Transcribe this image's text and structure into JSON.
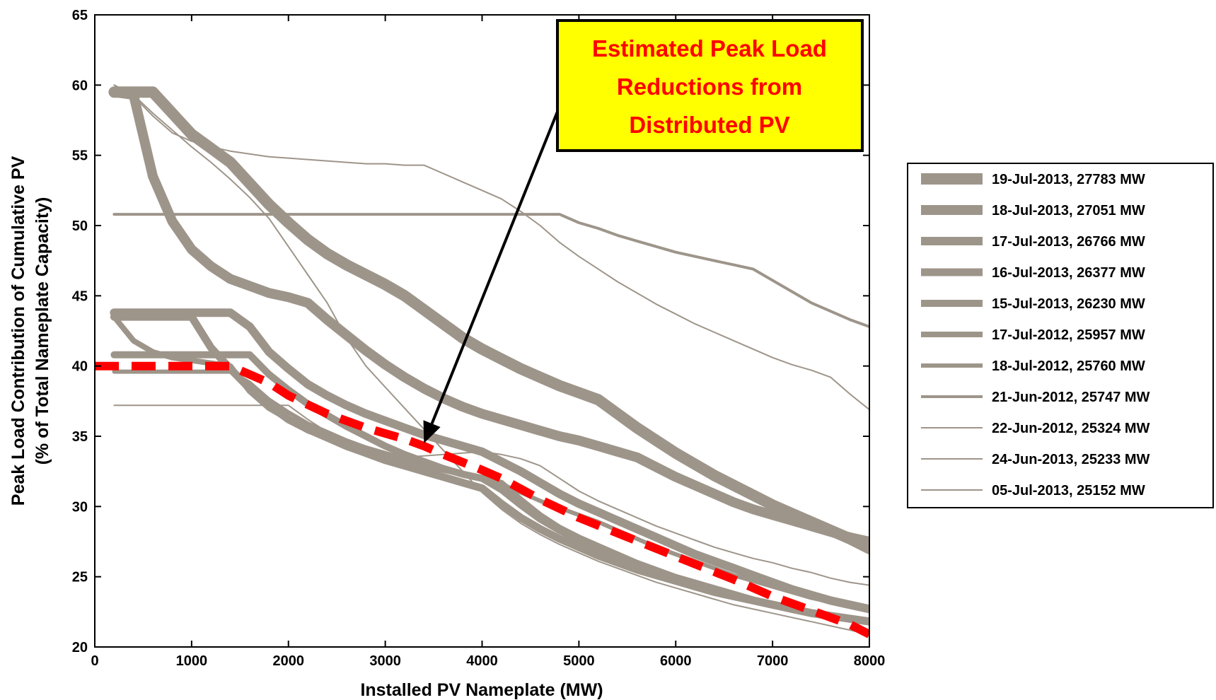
{
  "chart_data": {
    "type": "line",
    "xlabel": "Installed PV Nameplate (MW)",
    "ylabel": [
      "Peak Load Contribution of Cumulative PV",
      "(% of Total Nameplate Capacity)"
    ],
    "xlim": [
      0,
      8000
    ],
    "ylim": [
      20,
      65
    ],
    "xticks": [
      0,
      1000,
      2000,
      3000,
      4000,
      5000,
      6000,
      7000,
      8000
    ],
    "yticks": [
      20,
      25,
      30,
      35,
      40,
      45,
      50,
      55,
      60,
      65
    ],
    "grid": false,
    "legend_position": "right",
    "series_color": "#9e958a",
    "highlight_color": "#ff0000",
    "annotation": {
      "lines": [
        "Estimated Peak Load",
        "Reductions from",
        "Distributed PV"
      ],
      "text_color": "#ff0000",
      "background": "#ffff00",
      "arrow_target": [
        3400,
        34.5
      ]
    },
    "series": [
      {
        "name": "19-Jul-2013, 27783 MW",
        "stroke": 16,
        "x": [
          200,
          600,
          800,
          1000,
          1200,
          1400,
          1600,
          1800,
          2000,
          2200,
          2400,
          2600,
          2800,
          3000,
          3200,
          3400,
          3600,
          3800,
          4000,
          4200,
          4400,
          4600,
          4800,
          5000,
          5200,
          5400,
          5600,
          5800,
          6000,
          6200,
          6400,
          6600,
          6800,
          7000,
          7200,
          7400,
          7600,
          7800,
          8000
        ],
        "y": [
          59.5,
          59.5,
          58,
          56.5,
          55.5,
          54.5,
          53,
          51.5,
          50.2,
          49,
          48,
          47.2,
          46.5,
          45.8,
          45,
          44,
          43,
          42,
          41.2,
          40.5,
          39.8,
          39.2,
          38.6,
          38.1,
          37.6,
          36.6,
          35.6,
          34.7,
          33.8,
          33,
          32.2,
          31.5,
          30.8,
          30.1,
          29.5,
          28.9,
          28.3,
          27.7,
          27.0
        ]
      },
      {
        "name": "18-Jul-2013, 27051 MW",
        "stroke": 14,
        "x": [
          200,
          400,
          600,
          800,
          1000,
          1200,
          1400,
          1600,
          1800,
          2000,
          2200,
          2400,
          2600,
          2800,
          3000,
          3200,
          3400,
          3600,
          3800,
          4000,
          4200,
          4400,
          4600,
          4800,
          5000,
          5200,
          5400,
          5600,
          5800,
          6000,
          6200,
          6400,
          6600,
          6800,
          7000,
          7200,
          7400,
          7600,
          7800,
          8000
        ],
        "y": [
          59.5,
          59.3,
          53.5,
          50.3,
          48.3,
          47.1,
          46.2,
          45.7,
          45.2,
          44.9,
          44.5,
          43.3,
          42.2,
          41.1,
          40.1,
          39.2,
          38.4,
          37.7,
          37.1,
          36.6,
          36.2,
          35.8,
          35.4,
          35.0,
          34.7,
          34.3,
          33.9,
          33.5,
          32.8,
          32.1,
          31.5,
          30.9,
          30.3,
          29.8,
          29.4,
          29.0,
          28.6,
          28.2,
          27.8,
          27.5
        ]
      },
      {
        "name": "17-Jul-2013, 26766 MW",
        "stroke": 12,
        "x": [
          200,
          400,
          600,
          800,
          1000,
          1200,
          1400,
          1600,
          1800,
          2000,
          2200,
          2400,
          2600,
          2800,
          3000,
          3200,
          3400,
          3600,
          3800,
          4000,
          4200,
          4400,
          4600,
          4800,
          5000,
          5200,
          5400,
          5600,
          5800,
          6000,
          6200,
          6400,
          6600,
          6800,
          7000,
          7200,
          7400,
          7600,
          7800,
          8000
        ],
        "y": [
          43.8,
          43.8,
          43.8,
          43.8,
          43.8,
          43.8,
          43.8,
          42.8,
          41.0,
          39.8,
          38.7,
          37.9,
          37.2,
          36.6,
          36.1,
          35.6,
          35.1,
          34.7,
          34.3,
          33.9,
          33.2,
          32.5,
          31.7,
          30.9,
          30.2,
          29.6,
          29.0,
          28.4,
          27.8,
          27.2,
          26.6,
          26.1,
          25.6,
          25.1,
          24.6,
          24.1,
          23.7,
          23.3,
          23.0,
          22.7
        ]
      },
      {
        "name": "16-Jul-2013, 26377 MW",
        "stroke": 11,
        "x": [
          200,
          400,
          600,
          800,
          1000,
          1200,
          1400,
          1600,
          1800,
          2000,
          2200,
          2400,
          2600,
          2800,
          3000,
          3200,
          3400,
          3600,
          3800,
          4000,
          4200,
          4400,
          4600,
          4800,
          5000,
          5200,
          5400,
          5600,
          5800,
          6000,
          6200,
          6400,
          6600,
          6800,
          7000,
          7200,
          7400,
          7600,
          7800,
          8000
        ],
        "y": [
          43.5,
          43.5,
          43.5,
          43.5,
          43.5,
          41.3,
          39.8,
          38.4,
          37.2,
          36.2,
          35.5,
          34.9,
          34.3,
          33.8,
          33.3,
          32.9,
          32.5,
          32.1,
          31.7,
          31.3,
          30.2,
          29.2,
          28.4,
          27.7,
          27.1,
          26.5,
          26.0,
          25.5,
          25.1,
          24.7,
          24.3,
          23.9,
          23.6,
          23.3,
          23.0,
          22.7,
          22.4,
          22.2,
          22.0,
          21.8
        ]
      },
      {
        "name": "15-Jul-2013, 26230 MW",
        "stroke": 10,
        "x": [
          200,
          400,
          600,
          800,
          1000,
          1200,
          1400,
          1600,
          1800,
          2000,
          2200,
          2400,
          2600,
          2800,
          3000,
          3200,
          3400,
          3600,
          3800,
          4000,
          4200,
          4400,
          4600,
          4800,
          5000,
          5200,
          5400,
          5600,
          5800,
          6000,
          6200,
          6400,
          6600,
          6800,
          7000,
          7200,
          7400,
          7600,
          7800,
          8000
        ],
        "y": [
          40.8,
          40.8,
          40.8,
          40.8,
          40.8,
          40.8,
          40.8,
          40.8,
          39.4,
          38.3,
          37.3,
          36.5,
          35.7,
          35.0,
          34.3,
          33.7,
          33.2,
          32.7,
          32.3,
          32.0,
          31.2,
          30.1,
          29.1,
          28.3,
          27.6,
          27.0,
          26.4,
          25.9,
          25.4,
          24.9,
          24.5,
          24.1,
          23.7,
          23.3,
          23.0,
          22.7,
          22.4,
          22.2,
          22.0,
          21.8
        ]
      },
      {
        "name": "17-Jul-2012, 25957 MW",
        "stroke": 8,
        "x": [
          200,
          400,
          600,
          800,
          1000,
          1200,
          1400,
          1600,
          1800,
          2000,
          2200,
          2400,
          2600,
          2800,
          3000,
          3200,
          3400,
          3600,
          3800,
          4000,
          4200,
          4400,
          4600,
          4800,
          5000,
          5200,
          5400,
          5600,
          5800,
          6000,
          6200,
          6400,
          6600,
          6800,
          7000,
          7200,
          7400,
          7600,
          7800,
          8000
        ],
        "y": [
          43.5,
          41.8,
          41.0,
          40.6,
          40.4,
          40.2,
          40.0,
          38.2,
          37.0,
          36.2,
          35.4,
          34.9,
          34.4,
          34.0,
          33.6,
          33.2,
          32.9,
          32.6,
          32.3,
          32.0,
          31.7,
          30.5,
          29.4,
          28.5,
          27.8,
          27.2,
          26.6,
          26.0,
          25.5,
          25.0,
          24.6,
          24.2,
          23.8,
          23.4,
          23.1,
          22.8,
          22.5,
          22.3,
          22.1,
          21.9
        ]
      },
      {
        "name": "18-Jul-2012, 25760 MW",
        "stroke": 6,
        "x": [
          200,
          400,
          600,
          800,
          1000,
          1200,
          1400,
          1600,
          1800,
          2000,
          2200,
          2400,
          2600,
          2800,
          3000,
          3200,
          3400,
          3600,
          3800,
          4000,
          4200,
          4400,
          4600,
          4800,
          5000,
          5200,
          5400,
          5600,
          5800,
          6000,
          6200,
          6400,
          6600,
          6800,
          7000,
          7200,
          7400,
          7600,
          7800,
          8000
        ],
        "y": [
          39.6,
          39.6,
          39.6,
          39.6,
          39.6,
          39.6,
          39.6,
          38.8,
          37.6,
          36.7,
          35.9,
          35.3,
          34.7,
          34.2,
          33.8,
          33.4,
          33.0,
          32.7,
          32.4,
          32.1,
          31.6,
          31.0,
          30.4,
          29.9,
          29.4,
          28.9,
          28.3,
          27.7,
          27.1,
          26.6,
          26.1,
          25.6,
          25.1,
          24.7,
          24.3,
          23.9,
          23.5,
          23.2,
          22.9,
          22.6
        ]
      },
      {
        "name": "21-Jun-2012, 25747 MW",
        "stroke": 4,
        "x": [
          200,
          400,
          600,
          800,
          1000,
          1200,
          1400,
          1600,
          1800,
          2000,
          2200,
          2400,
          2600,
          2800,
          3000,
          3200,
          3400,
          3600,
          3800,
          4000,
          4200,
          4400,
          4600,
          4800,
          5000,
          5200,
          5400,
          5600,
          5800,
          6000,
          6200,
          6400,
          6600,
          6800,
          7000,
          7200,
          7400,
          7600,
          7800,
          8000
        ],
        "y": [
          50.8,
          50.8,
          50.8,
          50.8,
          50.8,
          50.8,
          50.8,
          50.8,
          50.8,
          50.8,
          50.8,
          50.8,
          50.8,
          50.8,
          50.8,
          50.8,
          50.8,
          50.8,
          50.8,
          50.8,
          50.8,
          50.8,
          50.8,
          50.8,
          50.2,
          49.8,
          49.3,
          48.9,
          48.5,
          48.1,
          47.8,
          47.5,
          47.2,
          46.9,
          46.1,
          45.3,
          44.5,
          43.9,
          43.3,
          42.8
        ]
      },
      {
        "name": "22-Jun-2012, 25324 MW",
        "stroke": 2,
        "x": [
          200,
          400,
          600,
          800,
          1000,
          1200,
          1400,
          1600,
          1800,
          2000,
          2200,
          2400,
          2600,
          2800,
          3000,
          3200,
          3400,
          3600,
          3800,
          4000,
          4200,
          4400,
          4600,
          4800,
          5000,
          5200,
          5400,
          5600,
          5800,
          6000,
          6200,
          6400,
          6600,
          6800,
          7000,
          7200,
          7400,
          7600,
          7800,
          8000
        ],
        "y": [
          60.0,
          59.2,
          57.8,
          56.6,
          56.0,
          55.6,
          55.3,
          55.1,
          54.9,
          54.8,
          54.7,
          54.6,
          54.5,
          54.4,
          54.4,
          54.3,
          54.3,
          53.7,
          53.1,
          52.5,
          51.9,
          51.0,
          50.0,
          48.8,
          47.8,
          46.9,
          46.0,
          45.2,
          44.4,
          43.7,
          43.0,
          42.4,
          41.8,
          41.2,
          40.6,
          40.1,
          39.7,
          39.2,
          38.0,
          36.9
        ]
      },
      {
        "name": "24-Jun-2013, 25233 MW",
        "stroke": 2,
        "x": [
          200,
          400,
          600,
          800,
          1000,
          1200,
          1400,
          1600,
          1800,
          2000,
          2200,
          2400,
          2600,
          2800,
          3000,
          3200,
          3400,
          3600,
          3800,
          4000,
          4200,
          4400,
          4600,
          4800,
          5000,
          5200,
          5400,
          5600,
          5800,
          6000,
          6200,
          6400,
          6600,
          6800,
          7000,
          7200,
          7400,
          7600,
          7800,
          8000
        ],
        "y": [
          37.2,
          37.2,
          37.2,
          37.2,
          37.2,
          37.2,
          37.2,
          37.2,
          37.2,
          37.2,
          36.2,
          35.3,
          34.6,
          34.1,
          33.7,
          33.5,
          33.6,
          33.7,
          33.8,
          33.9,
          33.7,
          33.4,
          32.9,
          32.0,
          31.1,
          30.4,
          29.8,
          29.2,
          28.6,
          28.1,
          27.6,
          27.1,
          26.7,
          26.3,
          26.0,
          25.6,
          25.3,
          24.9,
          24.6,
          24.4
        ]
      },
      {
        "name": "05-Jul-2013, 25152 MW",
        "stroke": 2,
        "x": [
          200,
          400,
          600,
          800,
          1000,
          1200,
          1400,
          1600,
          1800,
          2000,
          2200,
          2400,
          2600,
          2800,
          3000,
          3200,
          3400,
          3600,
          3800,
          4000,
          4200,
          4400,
          4600,
          4800,
          5000,
          5200,
          5400,
          5600,
          5800,
          6000,
          6200,
          6400,
          6600,
          6800,
          7000,
          7200,
          7400,
          7600,
          7800,
          8000
        ],
        "y": [
          60.0,
          59.3,
          58.0,
          56.8,
          55.6,
          54.5,
          53.3,
          52.0,
          50.5,
          48.5,
          46.5,
          44.5,
          42.0,
          40.0,
          38.5,
          37.0,
          35.5,
          34.0,
          32.5,
          31.0,
          29.8,
          28.8,
          28.0,
          27.3,
          26.7,
          26.1,
          25.6,
          25.1,
          24.6,
          24.2,
          23.8,
          23.4,
          23.0,
          22.7,
          22.4,
          22.1,
          21.8,
          21.5,
          21.2,
          20.9
        ]
      }
    ],
    "reduction_curve": {
      "x": [
        0,
        1400,
        1800,
        2000,
        2400,
        2800,
        3200,
        3400,
        3600,
        4000,
        4200,
        4600,
        5000,
        5400,
        5800,
        6200,
        6600,
        7000,
        7400,
        7800,
        8000
      ],
      "y": [
        40.0,
        40.0,
        38.8,
        37.9,
        36.6,
        35.6,
        34.8,
        34.3,
        33.7,
        32.6,
        32.0,
        30.5,
        29.2,
        28.1,
        27.0,
        25.9,
        24.8,
        23.6,
        22.6,
        21.6,
        20.9
      ]
    }
  }
}
